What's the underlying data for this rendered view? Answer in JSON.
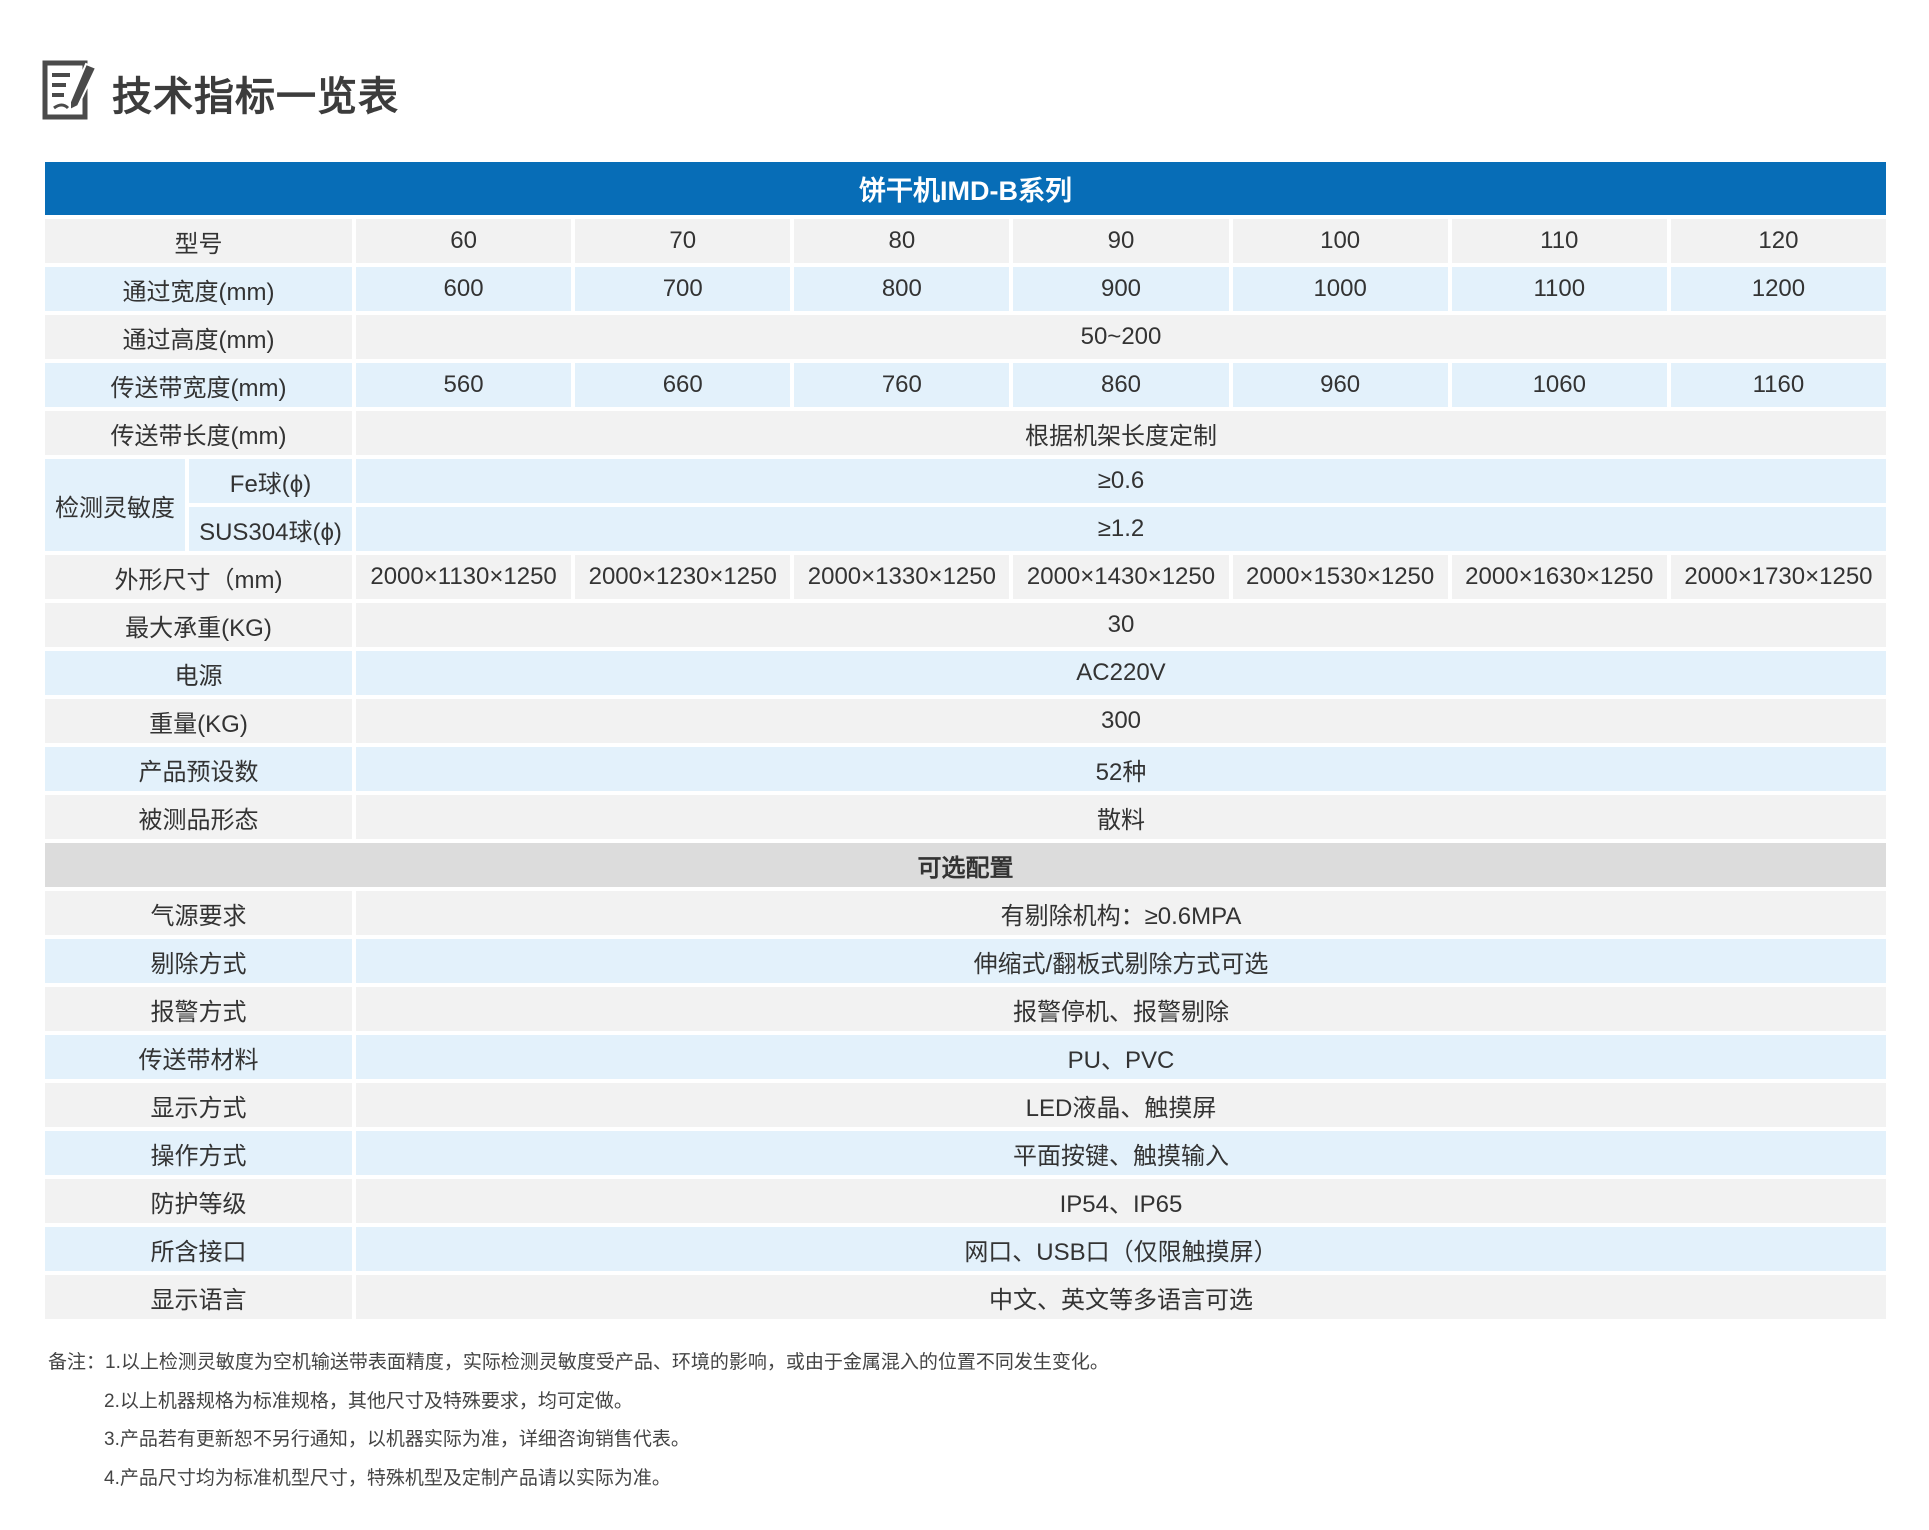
{
  "page_title": "技术指标一览表",
  "title_icon": "edit-document-icon",
  "colors": {
    "header_blue": "#076db7",
    "row_gray": "#f2f2f2",
    "row_blue": "#e3f1fb",
    "section_gray": "#dcdcdc"
  },
  "table": {
    "series_title": "饼干机IMD-B系列",
    "model_label": "型号",
    "models": [
      "60",
      "70",
      "80",
      "90",
      "100",
      "110",
      "120"
    ],
    "rows": [
      {
        "label": "通过宽度(mm)",
        "values": [
          "600",
          "700",
          "800",
          "900",
          "1000",
          "1100",
          "1200"
        ],
        "tone": "blue"
      },
      {
        "label": "通过高度(mm)",
        "value": "50~200",
        "tone": "gray"
      },
      {
        "label": "传送带宽度(mm)",
        "values": [
          "560",
          "660",
          "760",
          "860",
          "960",
          "1060",
          "1160"
        ],
        "tone": "blue"
      },
      {
        "label": "传送带长度(mm)",
        "value": "根据机架长度定制",
        "tone": "gray"
      }
    ],
    "sensitivity": {
      "label": "检测灵敏度",
      "items": [
        {
          "label": "Fe球(ϕ)",
          "value": "≥0.6"
        },
        {
          "label": "SUS304球(ϕ)",
          "value": "≥1.2"
        }
      ]
    },
    "rows2": [
      {
        "label": "外形尺寸（mm)",
        "values": [
          "2000×1130×1250",
          "2000×1230×1250",
          "2000×1330×1250",
          "2000×1430×1250",
          "2000×1530×1250",
          "2000×1630×1250",
          "2000×1730×1250"
        ],
        "tone": "gray"
      },
      {
        "label": "最大承重(KG)",
        "value": "30",
        "tone": "gray"
      },
      {
        "label": "电源",
        "value": "AC220V",
        "tone": "blue"
      },
      {
        "label": "重量(KG)",
        "value": "300",
        "tone": "gray"
      },
      {
        "label": "产品预设数",
        "value": "52种",
        "tone": "blue"
      },
      {
        "label": "被测品形态",
        "value": "散料",
        "tone": "gray"
      }
    ],
    "options_title": "可选配置",
    "options": [
      {
        "label": "气源要求",
        "value": "有剔除机构：≥0.6MPA",
        "tone": "gray"
      },
      {
        "label": "剔除方式",
        "value": "伸缩式/翻板式剔除方式可选",
        "tone": "blue"
      },
      {
        "label": "报警方式",
        "value": "报警停机、报警剔除",
        "tone": "gray"
      },
      {
        "label": "传送带材料",
        "value": "PU、PVC",
        "tone": "blue"
      },
      {
        "label": "显示方式",
        "value": "LED液晶、触摸屏",
        "tone": "gray"
      },
      {
        "label": "操作方式",
        "value": "平面按键、触摸输入",
        "tone": "blue"
      },
      {
        "label": "防护等级",
        "value": "IP54、IP65",
        "tone": "gray"
      },
      {
        "label": "所含接口",
        "value": "网口、USB口（仅限触摸屏）",
        "tone": "blue"
      },
      {
        "label": "显示语言",
        "value": "中文、英文等多语言可选",
        "tone": "gray"
      }
    ]
  },
  "notes": [
    "备注：1.以上检测灵敏度为空机输送带表面精度，实际检测灵敏度受产品、环境的影响，或由于金属混入的位置不同发生变化。",
    "2.以上机器规格为标准规格，其他尺寸及特殊要求，均可定做。",
    "3.产品若有更新恕不另行通知，以机器实际为准，详细咨询销售代表。",
    "4.产品尺寸均为标准机型尺寸，特殊机型及定制产品请以实际为准。"
  ]
}
